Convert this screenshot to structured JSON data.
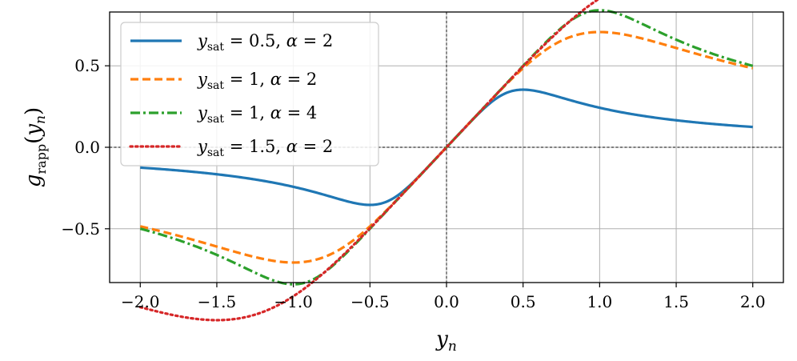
{
  "chart_data": {
    "type": "line",
    "title": "",
    "xlabel": {
      "base": "y",
      "sub": "n"
    },
    "ylabel": {
      "base": "g",
      "sub": "rapp",
      "arg_base": "y",
      "arg_sub": "n"
    },
    "xlim": [
      -2.2,
      2.2
    ],
    "ylim": [
      -0.83,
      0.83
    ],
    "xticks": [
      -2.0,
      -1.5,
      -1.0,
      -0.5,
      0.0,
      0.5,
      1.0,
      1.5,
      2.0
    ],
    "xtick_labels": [
      "−2.0",
      "−1.5",
      "−1.0",
      "−0.5",
      "0.0",
      "0.5",
      "1.0",
      "1.5",
      "2.0"
    ],
    "yticks": [
      -0.5,
      0.0,
      0.5
    ],
    "ytick_labels": [
      "−0.5",
      "0.0",
      "0.5"
    ],
    "grid": true,
    "zero_lines": true,
    "legend_position": "top-left",
    "x_range": [
      -2.0,
      2.0
    ],
    "series": [
      {
        "label": {
          "sub": "sat",
          "value": "0.5",
          "alpha": "2"
        },
        "ysat": 0.5,
        "alpha": 2,
        "color": "#1f77b4",
        "dash": "solid"
      },
      {
        "label": {
          "sub": "sat",
          "value": "1",
          "alpha": "2"
        },
        "ysat": 1.0,
        "alpha": 2,
        "color": "#ff7f0e",
        "dash": "dashed"
      },
      {
        "label": {
          "sub": "sat",
          "value": "1",
          "alpha": "4"
        },
        "ysat": 1.0,
        "alpha": 4,
        "color": "#2ca02c",
        "dash": "dashdot"
      },
      {
        "label": {
          "sub": "sat",
          "value": "1.5",
          "alpha": "2"
        },
        "ysat": 1.5,
        "alpha": 2,
        "color": "#d62728",
        "dash": "dotted"
      }
    ]
  }
}
